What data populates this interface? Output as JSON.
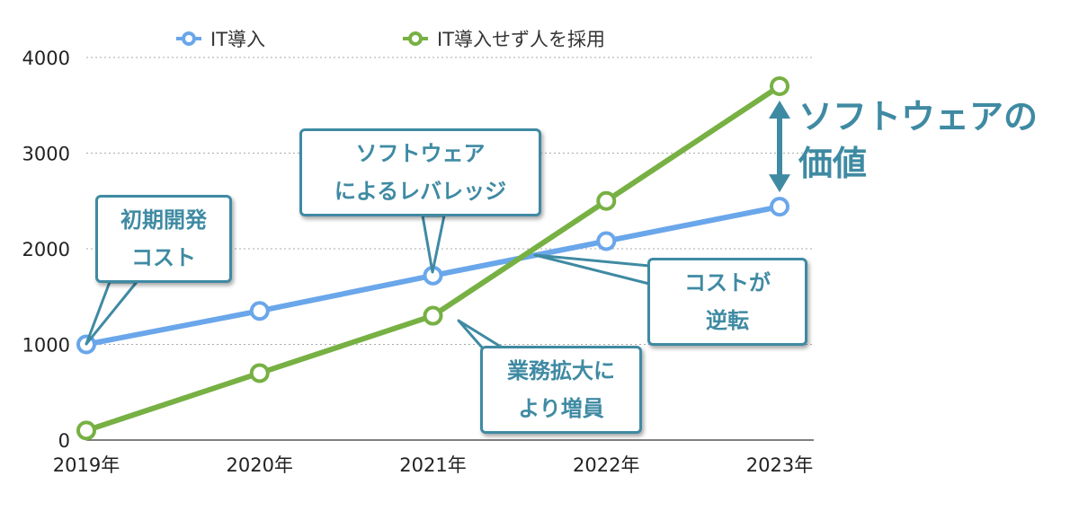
{
  "chart_data": {
    "type": "line",
    "x": [
      "2019年",
      "2020年",
      "2021年",
      "2022年",
      "2023年"
    ],
    "series": [
      {
        "name": "IT導入",
        "color": "#6aa6ea",
        "values": [
          1000,
          1350,
          1720,
          2080,
          2440
        ]
      },
      {
        "name": "IT導入せず人を採用",
        "color": "#77b043",
        "values": [
          100,
          700,
          1300,
          2500,
          3700
        ]
      }
    ],
    "ylim": [
      0,
      4000
    ],
    "yticks": [
      "0",
      "1000",
      "2000",
      "3000",
      "4000"
    ],
    "grid": "horizontal dotted",
    "legend": "top",
    "annotations": {
      "initial_cost": [
        "初期開発",
        "コスト"
      ],
      "leverage": [
        "ソフトウェア",
        "によるレバレッジ"
      ],
      "cost_reverse": [
        "コストが",
        "逆転"
      ],
      "staff_increase": [
        "業務拡大に",
        "より増員"
      ],
      "software_value": [
        "ソフトウェアの",
        "価値"
      ]
    },
    "accent_color": "#3f8aa3"
  }
}
